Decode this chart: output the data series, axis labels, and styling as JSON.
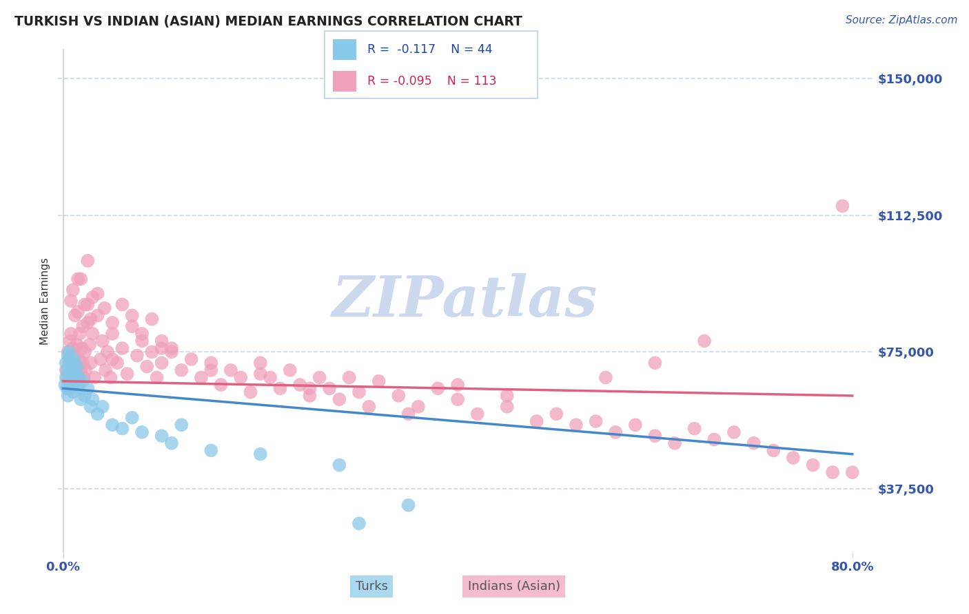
{
  "title": "TURKISH VS INDIAN (ASIAN) MEDIAN EARNINGS CORRELATION CHART",
  "source_text": "Source: ZipAtlas.com",
  "ylabel": "Median Earnings",
  "xlim": [
    -0.005,
    0.82
  ],
  "ylim": [
    20000,
    158000
  ],
  "yticks": [
    37500,
    75000,
    112500,
    150000
  ],
  "ytick_labels": [
    "$37,500",
    "$75,000",
    "$112,500",
    "$150,000"
  ],
  "grid_color": "#c8d8e8",
  "background_color": "#ffffff",
  "turks_color": "#88C8E8",
  "indians_color": "#F0A0B8",
  "axis_color": "#3355aa",
  "title_color": "#222222",
  "source_color": "#3355aa",
  "watermark_text": "ZIPatlas",
  "watermark_color": "#ccd8ee",
  "turks_line_color": "#4488CC",
  "indians_line_color": "#E06080",
  "legend_border_color": "#c8d8e8",
  "R_value_color_blue": "#2244aa",
  "R_value_color_pink": "#cc2255",
  "N_value_color": "#2244aa",
  "turks_label_color": "#555555",
  "indians_label_color": "#555555",
  "turks_x": [
    0.002,
    0.003,
    0.003,
    0.004,
    0.004,
    0.005,
    0.005,
    0.006,
    0.006,
    0.007,
    0.007,
    0.008,
    0.008,
    0.009,
    0.009,
    0.01,
    0.01,
    0.011,
    0.011,
    0.012,
    0.013,
    0.014,
    0.015,
    0.016,
    0.018,
    0.02,
    0.022,
    0.025,
    0.028,
    0.03,
    0.035,
    0.04,
    0.05,
    0.06,
    0.07,
    0.08,
    0.1,
    0.11,
    0.12,
    0.15,
    0.2,
    0.28,
    0.3,
    0.35
  ],
  "turks_y": [
    66000,
    72000,
    68000,
    65000,
    70000,
    74000,
    63000,
    69000,
    75000,
    67000,
    73000,
    71000,
    65000,
    68000,
    72000,
    64000,
    70000,
    67000,
    73000,
    69000,
    66000,
    71000,
    65000,
    68000,
    62000,
    67000,
    63000,
    65000,
    60000,
    62000,
    58000,
    60000,
    55000,
    54000,
    57000,
    53000,
    52000,
    50000,
    55000,
    48000,
    47000,
    44000,
    28000,
    33000
  ],
  "indians_x": [
    0.003,
    0.004,
    0.005,
    0.005,
    0.006,
    0.007,
    0.008,
    0.008,
    0.009,
    0.01,
    0.011,
    0.012,
    0.013,
    0.014,
    0.015,
    0.016,
    0.017,
    0.018,
    0.019,
    0.02,
    0.021,
    0.022,
    0.023,
    0.025,
    0.027,
    0.028,
    0.03,
    0.032,
    0.035,
    0.038,
    0.04,
    0.043,
    0.045,
    0.048,
    0.05,
    0.055,
    0.06,
    0.065,
    0.07,
    0.075,
    0.08,
    0.085,
    0.09,
    0.095,
    0.1,
    0.11,
    0.12,
    0.13,
    0.14,
    0.15,
    0.16,
    0.17,
    0.18,
    0.19,
    0.2,
    0.21,
    0.22,
    0.23,
    0.24,
    0.25,
    0.26,
    0.27,
    0.28,
    0.29,
    0.3,
    0.31,
    0.32,
    0.34,
    0.36,
    0.38,
    0.4,
    0.42,
    0.45,
    0.48,
    0.5,
    0.52,
    0.54,
    0.56,
    0.58,
    0.6,
    0.62,
    0.64,
    0.66,
    0.68,
    0.7,
    0.72,
    0.74,
    0.76,
    0.78,
    0.8,
    0.025,
    0.03,
    0.02,
    0.015,
    0.01,
    0.008,
    0.012,
    0.018,
    0.022,
    0.028,
    0.035,
    0.042,
    0.05,
    0.06,
    0.07,
    0.08,
    0.09,
    0.1,
    0.11,
    0.79,
    0.65,
    0.55,
    0.45,
    0.35,
    0.25,
    0.15,
    0.05,
    0.025,
    0.015,
    0.6,
    0.4,
    0.2,
    0.1
  ],
  "indians_y": [
    70000,
    68000,
    75000,
    65000,
    72000,
    78000,
    66000,
    80000,
    73000,
    76000,
    69000,
    74000,
    71000,
    77000,
    68000,
    73000,
    80000,
    70000,
    76000,
    72000,
    68000,
    75000,
    70000,
    83000,
    77000,
    72000,
    80000,
    68000,
    85000,
    73000,
    78000,
    70000,
    75000,
    68000,
    80000,
    72000,
    76000,
    69000,
    82000,
    74000,
    78000,
    71000,
    75000,
    68000,
    72000,
    76000,
    70000,
    73000,
    68000,
    72000,
    66000,
    70000,
    68000,
    64000,
    72000,
    68000,
    65000,
    70000,
    66000,
    63000,
    68000,
    65000,
    62000,
    68000,
    64000,
    60000,
    67000,
    63000,
    60000,
    65000,
    62000,
    58000,
    60000,
    56000,
    58000,
    55000,
    56000,
    53000,
    55000,
    52000,
    50000,
    54000,
    51000,
    53000,
    50000,
    48000,
    46000,
    44000,
    42000,
    42000,
    88000,
    90000,
    82000,
    86000,
    92000,
    89000,
    85000,
    95000,
    88000,
    84000,
    91000,
    87000,
    83000,
    88000,
    85000,
    80000,
    84000,
    78000,
    75000,
    115000,
    78000,
    68000,
    63000,
    58000,
    65000,
    70000,
    73000,
    100000,
    95000,
    72000,
    66000,
    69000,
    76000
  ]
}
